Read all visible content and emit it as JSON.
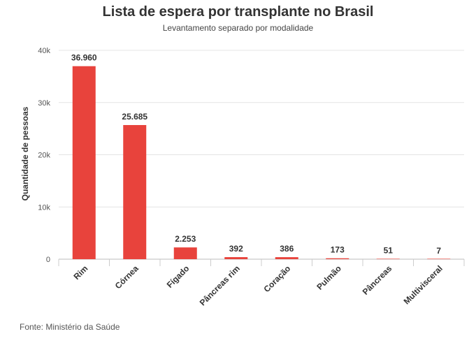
{
  "header": {
    "title": "Lista de espera por transplante no Brasil",
    "subtitle": "Levantamento separado por modalidade"
  },
  "footer": {
    "source": "Fonte: Ministério da Saúde"
  },
  "chart_data": {
    "type": "bar",
    "title": "Lista de espera por transplante no Brasil",
    "subtitle": "Levantamento separado por modalidade",
    "xlabel": "",
    "ylabel": "Quantidade de pessoas",
    "categories": [
      "Rim",
      "Córnea",
      "Fígado",
      "Pâncreas rim",
      "Coração",
      "Pulmão",
      "Pâncreas",
      "Multivisceral"
    ],
    "values": [
      36960,
      25685,
      2253,
      392,
      386,
      173,
      51,
      7
    ],
    "data_labels": [
      "36.960",
      "25.685",
      "2.253",
      "392",
      "386",
      "173",
      "51",
      "7"
    ],
    "ylim": [
      0,
      40000
    ],
    "yticks": [
      0,
      10000,
      20000,
      30000,
      40000
    ],
    "ytick_labels": [
      "0",
      "10k",
      "20k",
      "30k",
      "40k"
    ],
    "grid": true,
    "bar_color": "#e8433c"
  }
}
